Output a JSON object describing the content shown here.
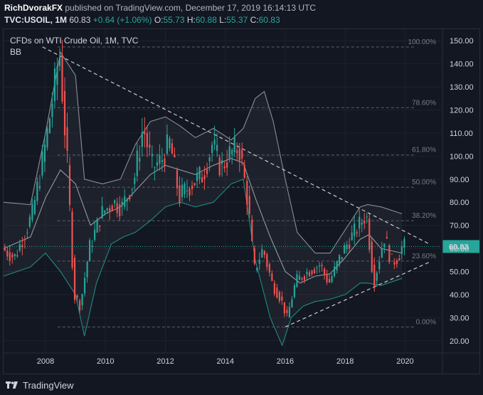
{
  "header": {
    "author": "RichDvorakFX",
    "published_text": "published on TradingView.com, December 17, 2019 16:14:13 UTC"
  },
  "ohlc": {
    "symbol": "TVC:USOIL, 1M",
    "last": "60.83",
    "change": "+0.64 (+1.06%)",
    "o_label": "O:",
    "o_value": "55.73",
    "h_label": "H:",
    "h_value": "60.88",
    "l_label": "L:",
    "l_value": "55.37",
    "c_label": "C:",
    "c_value": "60.83"
  },
  "footer": {
    "brand": "TradingView"
  },
  "chart_data": {
    "type": "candlestick",
    "title": "CFDs on WTI Crude Oil, 1M, TVC",
    "indicator_label": "BB",
    "x_ticks": [
      "2008",
      "2010",
      "2012",
      "2014",
      "2016",
      "2018",
      "2020"
    ],
    "y_ticks": [
      "20.00",
      "30.00",
      "40.00",
      "50.00",
      "60.00",
      "70.00",
      "80.00",
      "90.00",
      "100.00",
      "110.00",
      "120.00",
      "130.00",
      "140.00",
      "150.00"
    ],
    "ylim": [
      15,
      155
    ],
    "xlim": [
      2006.6,
      2021.2
    ],
    "last_price_label": "60.83",
    "fib_levels": [
      {
        "label": "100.00%",
        "value": 147.3
      },
      {
        "label": "78.60%",
        "value": 121.0
      },
      {
        "label": "61.80%",
        "value": 100.5
      },
      {
        "label": "50.00%",
        "value": 86.5
      },
      {
        "label": "38.20%",
        "value": 72.0
      },
      {
        "label": "23.60%",
        "value": 54.5
      },
      {
        "label": "0.00%",
        "value": 26.0
      }
    ],
    "trendlines": [
      {
        "from": [
          2007.9,
          147.3
        ],
        "to": [
          2020.8,
          62.0
        ]
      },
      {
        "from": [
          2016.0,
          26.0
        ],
        "to": [
          2020.8,
          54.0
        ]
      }
    ],
    "price_path": [
      [
        2006.6,
        60
      ],
      [
        2007.0,
        56
      ],
      [
        2007.3,
        65
      ],
      [
        2007.6,
        75
      ],
      [
        2007.9,
        95
      ],
      [
        2008.1,
        110
      ],
      [
        2008.4,
        135
      ],
      [
        2008.5,
        147
      ],
      [
        2008.75,
        100
      ],
      [
        2009.0,
        40
      ],
      [
        2009.2,
        35
      ],
      [
        2009.5,
        60
      ],
      [
        2009.9,
        75
      ],
      [
        2010.3,
        80
      ],
      [
        2010.6,
        78
      ],
      [
        2011.0,
        90
      ],
      [
        2011.3,
        113
      ],
      [
        2011.6,
        95
      ],
      [
        2011.9,
        98
      ],
      [
        2012.2,
        106
      ],
      [
        2012.5,
        82
      ],
      [
        2012.9,
        88
      ],
      [
        2013.3,
        92
      ],
      [
        2013.6,
        105
      ],
      [
        2013.9,
        95
      ],
      [
        2014.2,
        101
      ],
      [
        2014.5,
        104
      ],
      [
        2014.8,
        80
      ],
      [
        2015.0,
        50
      ],
      [
        2015.3,
        60
      ],
      [
        2015.6,
        45
      ],
      [
        2015.9,
        38
      ],
      [
        2016.1,
        30
      ],
      [
        2016.4,
        46
      ],
      [
        2016.8,
        50
      ],
      [
        2017.2,
        53
      ],
      [
        2017.5,
        45
      ],
      [
        2017.9,
        57
      ],
      [
        2018.2,
        64
      ],
      [
        2018.5,
        70
      ],
      [
        2018.75,
        75
      ],
      [
        2019.0,
        45
      ],
      [
        2019.2,
        57
      ],
      [
        2019.35,
        65
      ],
      [
        2019.6,
        54
      ],
      [
        2019.8,
        56
      ],
      [
        2019.95,
        60.83
      ]
    ],
    "bb_upper": [
      [
        2006.6,
        80
      ],
      [
        2007.5,
        79
      ],
      [
        2008.0,
        110
      ],
      [
        2008.5,
        145
      ],
      [
        2009.0,
        135
      ],
      [
        2009.3,
        90
      ],
      [
        2009.9,
        88
      ],
      [
        2010.5,
        90
      ],
      [
        2011.0,
        105
      ],
      [
        2011.5,
        115
      ],
      [
        2012.0,
        117
      ],
      [
        2012.5,
        113
      ],
      [
        2013.0,
        108
      ],
      [
        2013.6,
        112
      ],
      [
        2014.2,
        107
      ],
      [
        2014.6,
        112
      ],
      [
        2015.0,
        125
      ],
      [
        2015.3,
        128
      ],
      [
        2015.6,
        115
      ],
      [
        2016.0,
        90
      ],
      [
        2016.4,
        67
      ],
      [
        2017.0,
        58
      ],
      [
        2017.5,
        58
      ],
      [
        2018.0,
        68
      ],
      [
        2018.5,
        78
      ],
      [
        2018.75,
        79
      ],
      [
        2019.2,
        78
      ],
      [
        2019.9,
        75
      ]
    ],
    "bb_middle": [
      [
        2006.6,
        60
      ],
      [
        2007.5,
        65
      ],
      [
        2008.0,
        82
      ],
      [
        2008.5,
        94
      ],
      [
        2009.0,
        88
      ],
      [
        2009.5,
        70
      ],
      [
        2010.0,
        75
      ],
      [
        2010.5,
        78
      ],
      [
        2011.0,
        85
      ],
      [
        2011.5,
        92
      ],
      [
        2012.0,
        96
      ],
      [
        2012.5,
        94
      ],
      [
        2013.0,
        92
      ],
      [
        2013.6,
        96
      ],
      [
        2014.2,
        99
      ],
      [
        2014.6,
        97
      ],
      [
        2015.0,
        82
      ],
      [
        2015.5,
        65
      ],
      [
        2016.0,
        50
      ],
      [
        2016.5,
        45
      ],
      [
        2017.0,
        48
      ],
      [
        2017.5,
        49
      ],
      [
        2018.0,
        56
      ],
      [
        2018.5,
        64
      ],
      [
        2018.8,
        66
      ],
      [
        2019.2,
        60
      ],
      [
        2019.9,
        58
      ]
    ],
    "bb_lower": [
      [
        2006.6,
        48
      ],
      [
        2007.5,
        52
      ],
      [
        2008.0,
        58
      ],
      [
        2008.5,
        50
      ],
      [
        2009.0,
        40
      ],
      [
        2009.3,
        22
      ],
      [
        2009.7,
        45
      ],
      [
        2010.2,
        62
      ],
      [
        2010.6,
        65
      ],
      [
        2011.0,
        67
      ],
      [
        2011.5,
        72
      ],
      [
        2012.0,
        78
      ],
      [
        2012.5,
        80
      ],
      [
        2013.0,
        78
      ],
      [
        2013.6,
        80
      ],
      [
        2014.2,
        88
      ],
      [
        2014.6,
        90
      ],
      [
        2015.0,
        55
      ],
      [
        2015.5,
        30
      ],
      [
        2015.9,
        18
      ],
      [
        2016.2,
        30
      ],
      [
        2016.6,
        35
      ],
      [
        2017.0,
        37
      ],
      [
        2017.5,
        38
      ],
      [
        2018.0,
        40
      ],
      [
        2018.5,
        45
      ],
      [
        2018.75,
        45
      ],
      [
        2019.2,
        44
      ],
      [
        2019.9,
        47
      ]
    ]
  }
}
